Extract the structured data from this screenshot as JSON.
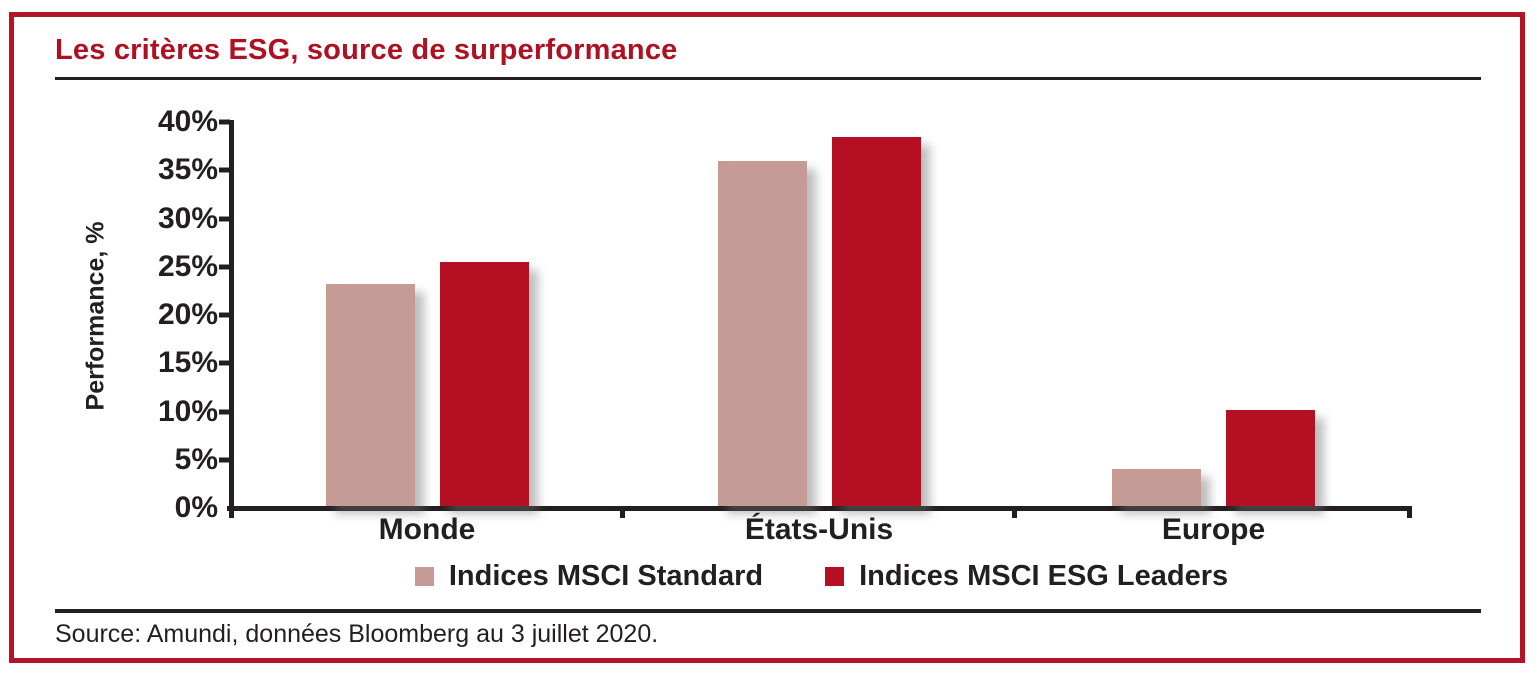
{
  "frame_color": "#B41428",
  "header": {
    "title": "Les critères ESG, source de surperformance",
    "title_color": "#AE1122"
  },
  "chart_data": {
    "type": "bar",
    "title": "Les critères ESG, source de surperformance",
    "categories": [
      "Monde",
      "États-Unis",
      "Europe"
    ],
    "series": [
      {
        "name": "Indices MSCI Standard",
        "color": "#C49B95",
        "values": [
          23.0,
          35.8,
          3.8
        ]
      },
      {
        "name": "Indices MSCI ESG Leaders",
        "color": "#B50F23",
        "values": [
          25.3,
          38.2,
          9.9
        ]
      }
    ],
    "xlabel": "",
    "ylabel": "Performance, %",
    "ylim": [
      0,
      40
    ],
    "ytick_step": 5,
    "ytick_format": "{v}%",
    "grid": false,
    "legend_position": "bottom",
    "axis_color": "#231F20",
    "shadow": true
  },
  "footer": {
    "source": "Source: Amundi, données Bloomberg au 3 juillet 2020."
  }
}
